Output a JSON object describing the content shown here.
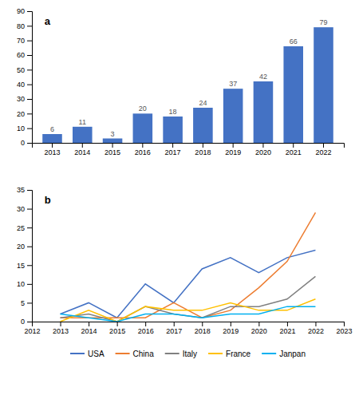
{
  "chart_data": [
    {
      "type": "bar",
      "categories": [
        "2013",
        "2014",
        "2015",
        "2016",
        "2017",
        "2018",
        "2019",
        "2020",
        "2021",
        "2022"
      ],
      "values": [
        6,
        11,
        3,
        20,
        18,
        24,
        37,
        42,
        66,
        79
      ],
      "color": "#4472C4",
      "ylim": [
        0,
        90
      ],
      "yticks": [
        0,
        10,
        20,
        30,
        40,
        50,
        60,
        70,
        80,
        90
      ],
      "data_labels": true,
      "grid": false,
      "annotations": [
        "a"
      ]
    },
    {
      "type": "line",
      "x": [
        2013,
        2014,
        2015,
        2016,
        2017,
        2018,
        2019,
        2020,
        2021,
        2022
      ],
      "xlim": [
        2012,
        2023
      ],
      "xticks": [
        2012,
        2013,
        2014,
        2015,
        2016,
        2017,
        2018,
        2019,
        2020,
        2021,
        2022,
        2023
      ],
      "ylim": [
        0,
        35
      ],
      "yticks": [
        0,
        5,
        10,
        15,
        20,
        25,
        30,
        35
      ],
      "series": [
        {
          "name": "USA",
          "color": "#4472C4",
          "values": [
            2,
            5,
            1,
            10,
            5,
            14,
            17,
            13,
            17,
            19
          ]
        },
        {
          "name": "China",
          "color": "#ED7D31",
          "values": [
            1,
            1,
            1,
            1,
            5,
            1,
            3,
            9,
            16,
            29
          ]
        },
        {
          "name": "Italy",
          "color": "#808080",
          "values": [
            1,
            2,
            0,
            4,
            2,
            1,
            4,
            4,
            6,
            12
          ]
        },
        {
          "name": "France",
          "color": "#FFC000",
          "values": [
            0,
            3,
            0,
            4,
            3,
            3,
            5,
            3,
            3,
            6
          ]
        },
        {
          "name": "Janpan",
          "color": "#00B0F0",
          "values": [
            2,
            1,
            0,
            2,
            2,
            1,
            2,
            2,
            4,
            4
          ]
        }
      ],
      "legend": "bottom",
      "grid": false,
      "annotations": [
        "b"
      ]
    }
  ]
}
